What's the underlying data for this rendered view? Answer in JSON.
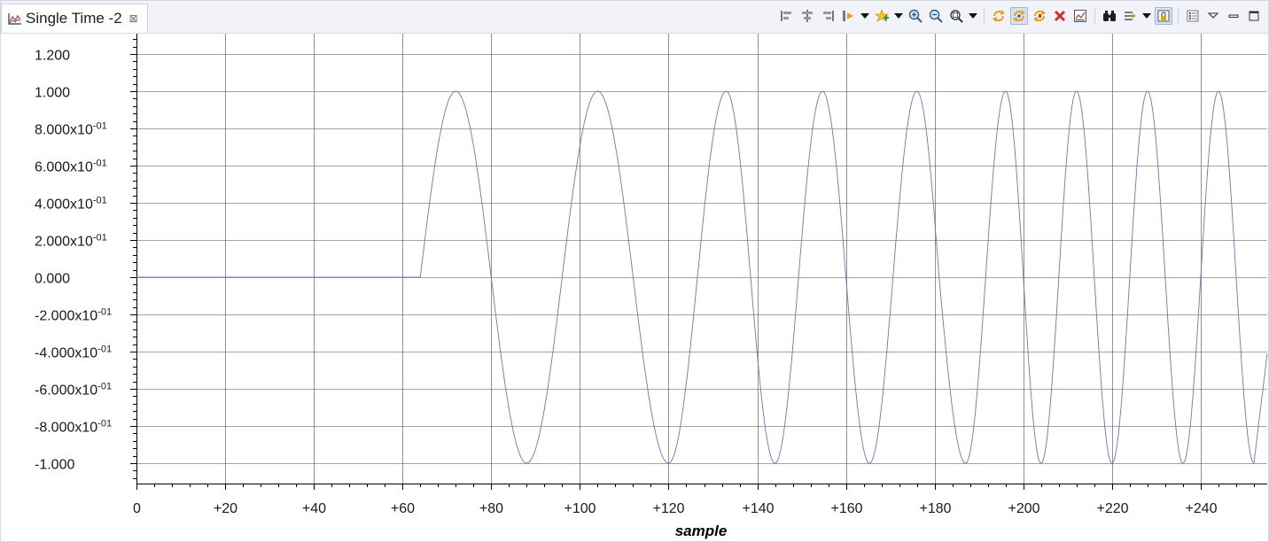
{
  "view": {
    "tab_label": "Single Time -2",
    "tab_icon": "line-graph-icon",
    "close_glyph": "⊠"
  },
  "toolbar": {
    "buttons": [
      "align-left-icon",
      "align-center-icon",
      "align-right-icon",
      "marker-icon",
      "dropdown-arrow",
      "add-measurement-icon",
      "dropdown-arrow",
      "zoom-in-icon",
      "zoom-out-icon",
      "zoom-fit-icon",
      "dropdown-arrow",
      "separator",
      "refresh-icon",
      "continuous-refresh-icon",
      "auto-refresh-icon",
      "remove-icon",
      "export-icon",
      "separator",
      "binoculars-icon",
      "scroll-lock-icon",
      "dropdown-arrow",
      "lock-view-icon",
      "separator",
      "properties-icon",
      "view-menu-icon",
      "minimize-icon",
      "maximize-icon"
    ],
    "pressed": [
      "continuous-refresh-icon",
      "lock-view-icon"
    ]
  },
  "colors": {
    "series": "#6b73c8",
    "grid": "#4a4a4a",
    "axis": "#000000"
  },
  "chart_data": {
    "type": "line",
    "title": "",
    "xlabel": "sample",
    "ylabel": "",
    "xlim": [
      0,
      255
    ],
    "ylim": [
      -1.1,
      1.22
    ],
    "grid": true,
    "x_ticks": [
      0,
      20,
      40,
      60,
      80,
      100,
      120,
      140,
      160,
      180,
      200,
      220,
      240
    ],
    "x_tick_labels": [
      "0",
      "+20",
      "+40",
      "+60",
      "+80",
      "+100",
      "+120",
      "+140",
      "+160",
      "+180",
      "+200",
      "+220",
      "+240"
    ],
    "y_ticks": [
      1.2,
      1.0,
      0.8,
      0.6,
      0.4,
      0.2,
      0.0,
      -0.2,
      -0.4,
      -0.6,
      -0.8,
      -1.0
    ],
    "y_tick_labels": [
      {
        "base": "1.200",
        "exp": ""
      },
      {
        "base": "1.000",
        "exp": ""
      },
      {
        "base": "8.000x10",
        "exp": "-01"
      },
      {
        "base": "6.000x10",
        "exp": "-01"
      },
      {
        "base": "4.000x10",
        "exp": "-01"
      },
      {
        "base": "2.000x10",
        "exp": "-01"
      },
      {
        "base": "0.000",
        "exp": ""
      },
      {
        "base": "-2.000x10",
        "exp": "-01"
      },
      {
        "base": "-4.000x10",
        "exp": "-01"
      },
      {
        "base": "-6.000x10",
        "exp": "-01"
      },
      {
        "base": "-8.000x10",
        "exp": "-01"
      },
      {
        "base": "-1.000",
        "exp": ""
      }
    ],
    "series": [
      {
        "name": "",
        "description_of_shape": "",
        "x": [
          0,
          64,
          72,
          80,
          88,
          96,
          104,
          112,
          120,
          126.5,
          133,
          138.5,
          144,
          149.3,
          154.7,
          160,
          165.3,
          170.6,
          176,
          181,
          187,
          191.5,
          196,
          200,
          204,
          208,
          212,
          216,
          220,
          224,
          228,
          232,
          236,
          240,
          244,
          248,
          252,
          255
        ],
        "y": [
          0,
          0,
          1,
          0,
          -1,
          0,
          1,
          0,
          -1,
          0,
          1,
          0,
          -1,
          0,
          1,
          0,
          -1,
          0,
          1,
          0,
          -1,
          0,
          1,
          0,
          -1,
          0,
          1,
          0,
          -1,
          0,
          1,
          0,
          -1,
          0,
          1,
          0,
          -1,
          -0.41
        ]
      }
    ]
  }
}
